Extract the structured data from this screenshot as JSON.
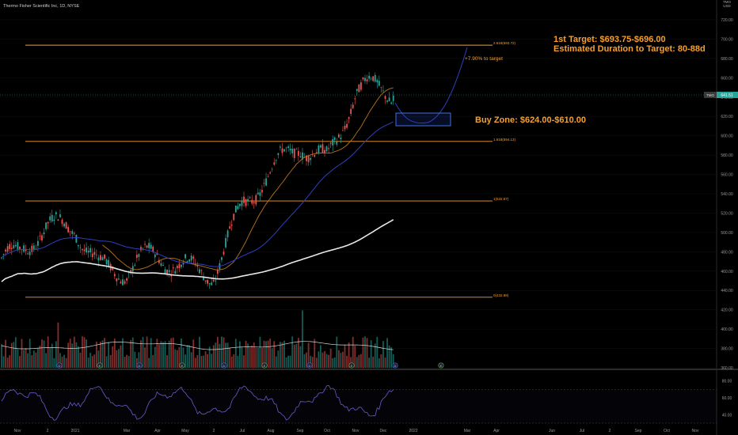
{
  "header": {
    "symbol_title": "Thermo Fisher Scientific Inc, 1D, NYSE"
  },
  "top_right": {
    "currency_line1": "TMO",
    "currency_line2": "USD"
  },
  "annotations": {
    "target_line1": "1st Target: $693.75-$696.00",
    "target_line2": "Estimated Duration to Target: 80-88d",
    "pct_to_target": "+7.90% to target",
    "buy_zone": "Buy Zone: $624.00-$610.00"
  },
  "price_tag": {
    "label": "TMO",
    "value": "641.51"
  },
  "fib_levels": [
    {
      "ratio_label": "2.618(693.72)",
      "price": 693.72
    },
    {
      "ratio_label": "1.618(594.13)",
      "price": 594.13
    },
    {
      "ratio_label": "1(532.57)",
      "price": 532.57
    },
    {
      "ratio_label": "0(432.98)",
      "price": 432.98
    }
  ],
  "colors": {
    "background": "#000000",
    "fib": "#f5a030",
    "up_candle": "#26a69a",
    "down_candle": "#ef5350",
    "ma_short": "#2f3fbf",
    "ma_long": "#e8e8e8",
    "ma_orange": "#b8741a",
    "rsi": "#6a5acd",
    "annotation_text": "#f5a030",
    "buy_zone_border": "#3f6fe0"
  },
  "chart_data": {
    "type": "candlestick",
    "title": "Thermo Fisher Scientific Inc, 1D, NYSE",
    "y_axis_ticks": [
      720,
      700,
      680,
      660,
      640,
      620,
      600,
      580,
      560,
      540,
      520,
      500,
      480,
      460,
      440,
      420,
      400,
      380,
      360
    ],
    "y_axis_tick_labels": [
      "720.00",
      "700.00",
      "680.00",
      "660.00",
      "640.00",
      "620.00",
      "600.00",
      "580.00",
      "560.00",
      "540.00",
      "520.00",
      "500.00",
      "480.00",
      "460.00",
      "440.00",
      "420.00",
      "400.00",
      "380.00",
      "360.00"
    ],
    "ylim": [
      360,
      725
    ],
    "x_axis_labels": [
      "Nov",
      "2",
      "2021",
      "Mar",
      "Apr",
      "May",
      "2",
      "Jul",
      "Aug",
      "Sep",
      "Oct",
      "Nov",
      "Dec",
      "2022",
      "Mar",
      "Apr",
      "Jun",
      "Jul",
      "2",
      "Sep",
      "Oct",
      "Nov"
    ],
    "price_path_monthly": [
      {
        "month": "Nov",
        "price": 470
      },
      {
        "month": "Dec",
        "price": 500
      },
      {
        "month": "Jan",
        "price": 515
      },
      {
        "month": "Feb",
        "price": 470
      },
      {
        "month": "Mar",
        "price": 455
      },
      {
        "month": "Apr",
        "price": 470
      },
      {
        "month": "May",
        "price": 470
      },
      {
        "month": "Jun",
        "price": 465
      },
      {
        "month": "Jul",
        "price": 520
      },
      {
        "month": "Aug",
        "price": 555
      },
      {
        "month": "Sep",
        "price": 600
      },
      {
        "month": "Oct",
        "price": 580
      },
      {
        "month": "Nov",
        "price": 640
      },
      {
        "month": "Dec",
        "price": 641.51
      }
    ],
    "buy_zone": {
      "high": 624.0,
      "low": 610.0
    },
    "target_zone": {
      "low": 693.75,
      "high": 696.0
    },
    "rsi_ticks": [
      80,
      60,
      40
    ],
    "rsi_tick_labels": [
      "80.00",
      "60.00",
      "40.00"
    ],
    "rsi_ylim": [
      30,
      90
    ]
  }
}
